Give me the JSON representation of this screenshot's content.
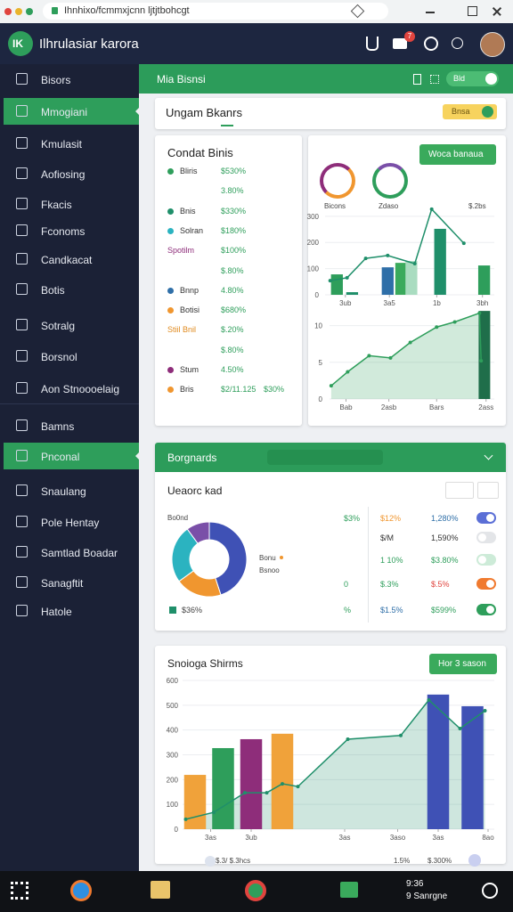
{
  "browser": {
    "url": "Ihnhixo/fcmmxjcnn ljtjtbohcgt"
  },
  "header": {
    "logo": "IK",
    "title": "Ilhrulasiar karora",
    "badge": "7"
  },
  "sidebar": {
    "items": [
      "Bisors",
      "Mmogiani",
      "Kmulasit",
      "Aofiosing",
      "Fkacis",
      "Fconoms",
      "Candkacat",
      "Botis",
      "Sotralg",
      "Borsnol",
      "Aon Stnoooelaig"
    ],
    "group": [
      "Bamns",
      "Pnconal",
      "Snaulang",
      "Pole Hentay",
      "Samtlad Boadar",
      "Sanagftit",
      "Hatole"
    ]
  },
  "topbar": {
    "title": "Mia Bisnsi",
    "toggle": "Bld"
  },
  "section": {
    "title": "Ungam Bkanrs",
    "button": "Bnsa"
  },
  "list_card": {
    "title": "Condat Binis",
    "rows": [
      {
        "label": "Bliris",
        "value": "$530%",
        "color": "#2e9e5b"
      },
      {
        "value": "3.80%"
      },
      {
        "label": "Bnis",
        "value": "$330%",
        "color": "#1f8f6a"
      },
      {
        "label": "Solran",
        "value": "$180%",
        "color": "#2bb3c0"
      },
      {
        "label": "Spotilm",
        "value": "$100%",
        "color": "#8e2d7a"
      },
      {
        "value": "$.80%"
      },
      {
        "label": "Bnnp",
        "value": "4.80%",
        "color": "#2f6fa8"
      },
      {
        "label": "Botisi",
        "value": "$680%",
        "color": "#f0962f"
      },
      {
        "label": "Stiil Bnil",
        "value": "$.20%",
        "color": "#e08a1e"
      },
      {
        "value": "$.80%"
      },
      {
        "label": "Stum",
        "value": "4.50%",
        "color": "#8e2d7a"
      },
      {
        "label": "Bris",
        "value": "$2/11.125",
        "extra": "$30%",
        "color": "#f0962f"
      }
    ]
  },
  "stats_card": {
    "button": "Woca banaua",
    "labels": [
      "Bicons",
      "Zdaso",
      "$.2bs"
    ]
  },
  "charts": [
    {
      "type": "combo",
      "ylim": [
        0,
        330
      ],
      "yticks": [
        0,
        100,
        200,
        300
      ],
      "xlim": [
        0,
        100
      ],
      "xticks": [
        {
          "value": 12,
          "label": "3ub"
        },
        {
          "value": 38,
          "label": "3a5"
        },
        {
          "value": 66,
          "label": "1b"
        },
        {
          "value": 93,
          "label": "3bh"
        }
      ],
      "bars": {
        "x": [
          7,
          16,
          37,
          45,
          51,
          68,
          94
        ],
        "values": [
          78,
          10,
          105,
          122,
          129,
          252,
          112
        ],
        "colors": [
          "#2e9e5b",
          "#1f8f6a",
          "#2f6fa8",
          "#3aaa5c",
          "#a9dcc0",
          "#1f8f6a",
          "#2e9e5b"
        ]
      },
      "line": {
        "x": [
          3,
          13,
          24,
          37,
          53,
          63,
          82
        ],
        "values": [
          54,
          65,
          139,
          150,
          119,
          327,
          197
        ],
        "color": "#1f8f6a"
      },
      "area": false
    },
    {
      "type": "combo",
      "ylim": [
        0,
        12.5
      ],
      "yticks": [
        0,
        5,
        10
      ],
      "xlim": [
        0,
        100
      ],
      "xticks": [
        {
          "value": 10,
          "label": "Bab"
        },
        {
          "value": 36,
          "label": "2asb"
        },
        {
          "value": 65,
          "label": "Bars"
        },
        {
          "value": 95,
          "label": "2ass"
        }
      ],
      "bars": {
        "x": [
          94
        ],
        "values": [
          12
        ],
        "colors": [
          "#1f6e4a"
        ]
      },
      "line": {
        "x": [
          1,
          11,
          24,
          37,
          49,
          65,
          76,
          91,
          92
        ],
        "values": [
          1.8,
          3.7,
          5.9,
          5.6,
          7.7,
          9.8,
          10.5,
          11.7,
          5.2
        ],
        "color": "#2e9e5b"
      },
      "area": true
    },
    {
      "type": "combo",
      "ylim": [
        0,
        600
      ],
      "yticks": [
        0,
        100,
        200,
        300,
        400,
        500,
        600
      ],
      "xlim": [
        0,
        100
      ],
      "xticks": [
        {
          "value": 9,
          "label": "3as"
        },
        {
          "value": 22,
          "label": "3ub"
        },
        {
          "value": 52,
          "label": "3as"
        },
        {
          "value": 69,
          "label": "3aso"
        },
        {
          "value": 82,
          "label": "3as"
        },
        {
          "value": 98,
          "label": "8ao"
        }
      ],
      "bars": {
        "x": [
          4,
          13,
          22,
          32,
          82,
          93
        ],
        "values": [
          219,
          327,
          363,
          385,
          543,
          496
        ],
        "colors": [
          "#f0a23a",
          "#2e9e5b",
          "#8e2d7a",
          "#f0a23a",
          "#3f51b5",
          "#3f51b5"
        ]
      },
      "line": {
        "x": [
          1,
          10,
          20,
          27,
          32,
          37,
          53,
          70,
          79,
          89,
          97
        ],
        "values": [
          40,
          68,
          147,
          147,
          183,
          172,
          363,
          378,
          521,
          406,
          478
        ],
        "color": "#1f8f6a"
      },
      "area": true
    }
  ],
  "breakdown": {
    "title": "Borgnards",
    "subtitle": "Ueaorc kad",
    "head": "Bo0nd",
    "pie": {
      "values": [
        45,
        20,
        25,
        10
      ],
      "colors": [
        "#3f51b5",
        "#f0962f",
        "#2bb3c0",
        "#7a4fa8"
      ]
    },
    "legend": [
      "Bonu",
      "Bsnoo",
      "$36%"
    ],
    "rows": [
      {
        "a": "$3%",
        "b": "$12%",
        "c": "1,280%"
      },
      {
        "b": "$/M",
        "c": "1,590%"
      },
      {
        "b": "1 10%",
        "c": "$3.80%"
      },
      {
        "a": "0",
        "b": "$.3%",
        "c": "$.5%"
      },
      {
        "a": "%",
        "b": "$1.5%",
        "c": "$599%"
      }
    ]
  },
  "trend": {
    "title": "Snoioga Shirms",
    "button": "Hor 3 sason",
    "footer": [
      "$.3/ $.3hcs",
      "1.5%",
      "$.300%"
    ]
  },
  "taskbar": {
    "time": "9:36",
    "date": "9 Sanrgne"
  }
}
